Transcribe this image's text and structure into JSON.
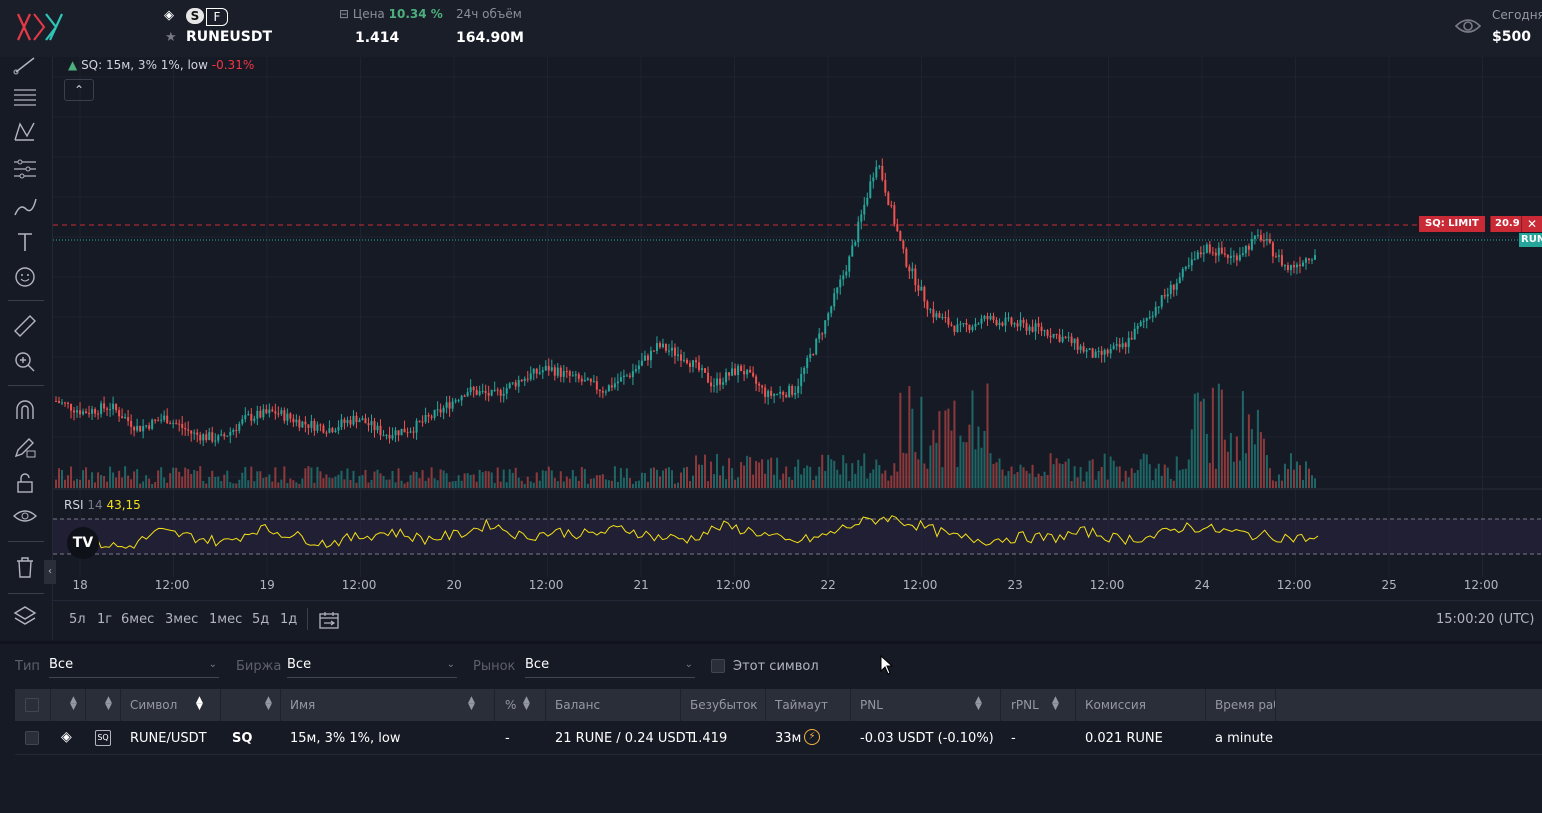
{
  "header": {
    "exchange_badges": {
      "s": "S",
      "f": "F"
    },
    "symbol": "RUNEUSDT",
    "price_label": "Цена",
    "price_change": "10.34 %",
    "price_value": "1.414",
    "volume_label": "24ч объём",
    "volume_value": "164.90M",
    "today_label": "Сегодня",
    "today_value": "$500"
  },
  "chart": {
    "legend_name": "SQ: 15м, 3% 1%, low",
    "legend_change": "-0.31%",
    "rsi_label": "RSI",
    "rsi_period": "14",
    "rsi_value": "43,15",
    "order_label": "SQ: LIMIT",
    "order_value": "20.9",
    "price_tag": "RUN",
    "x_ticks": [
      "18",
      "12:00",
      "19",
      "12:00",
      "20",
      "12:00",
      "21",
      "12:00",
      "22",
      "12:00",
      "23",
      "12:00",
      "24",
      "12:00",
      "25",
      "12:00"
    ],
    "colors": {
      "up": "#26a69a",
      "down": "#ef5350",
      "rsi": "#f5e017",
      "order_line": "#c92a35",
      "price_line": "#26a69a"
    }
  },
  "chart_data": {
    "type": "candlestick",
    "series": [
      {
        "name": "SQ: 15м, 3% 1%, low",
        "values": [
          1.32,
          1.3,
          1.31,
          1.27,
          1.29,
          1.26,
          1.25,
          1.29,
          1.3,
          1.28,
          1.27,
          1.29,
          1.26,
          1.27,
          1.3,
          1.34,
          1.33,
          1.36,
          1.38,
          1.36,
          1.34,
          1.37,
          1.42,
          1.4,
          1.35,
          1.38,
          1.33,
          1.34,
          1.45,
          1.58,
          1.76,
          1.58,
          1.48,
          1.45,
          1.47,
          1.46,
          1.45,
          1.43,
          1.4,
          1.42,
          1.48,
          1.54,
          1.6,
          1.58,
          1.62,
          1.56,
          1.59
        ]
      },
      {
        "name": "RSI",
        "values": [
          45,
          40,
          55,
          50,
          45,
          58,
          52,
          44,
          50,
          55,
          48,
          52,
          62,
          50,
          55,
          52,
          58,
          50,
          48,
          60,
          55,
          45,
          50,
          62,
          68,
          60,
          50,
          47,
          50,
          49,
          55,
          48,
          50,
          60,
          56,
          52,
          50,
          48
        ]
      }
    ]
  },
  "timeframes": [
    "5л",
    "1г",
    "6мес",
    "3мес",
    "1мес",
    "5д",
    "1д"
  ],
  "clock": "15:00:20 (UTC)",
  "filters": {
    "type_label": "Тип",
    "type_value": "Все",
    "exchange_label": "Биржа",
    "exchange_value": "Все",
    "market_label": "Рынок",
    "market_value": "Все",
    "this_symbol": "Этот символ"
  },
  "table": {
    "headers": {
      "symbol": "Символ",
      "name": "Имя",
      "percent": "%",
      "balance": "Баланс",
      "breakeven": "Безубыток",
      "timeout": "Таймаут",
      "pnl": "PNL",
      "rpnl": "rPNL",
      "commission": "Комиссия",
      "worktime": "Время раб"
    },
    "rows": [
      {
        "symbol": "RUNE/USDT",
        "strategy": "SQ",
        "name": "15м, 3% 1%, low",
        "percent": "-",
        "balance": "21 RUNE / 0.24 USDT",
        "breakeven": "1.419",
        "timeout": "33м",
        "pnl": "-0.03 USDT (-0.10%)",
        "rpnl": "-",
        "commission": "0.021 RUNE",
        "worktime": "a minute"
      }
    ]
  }
}
